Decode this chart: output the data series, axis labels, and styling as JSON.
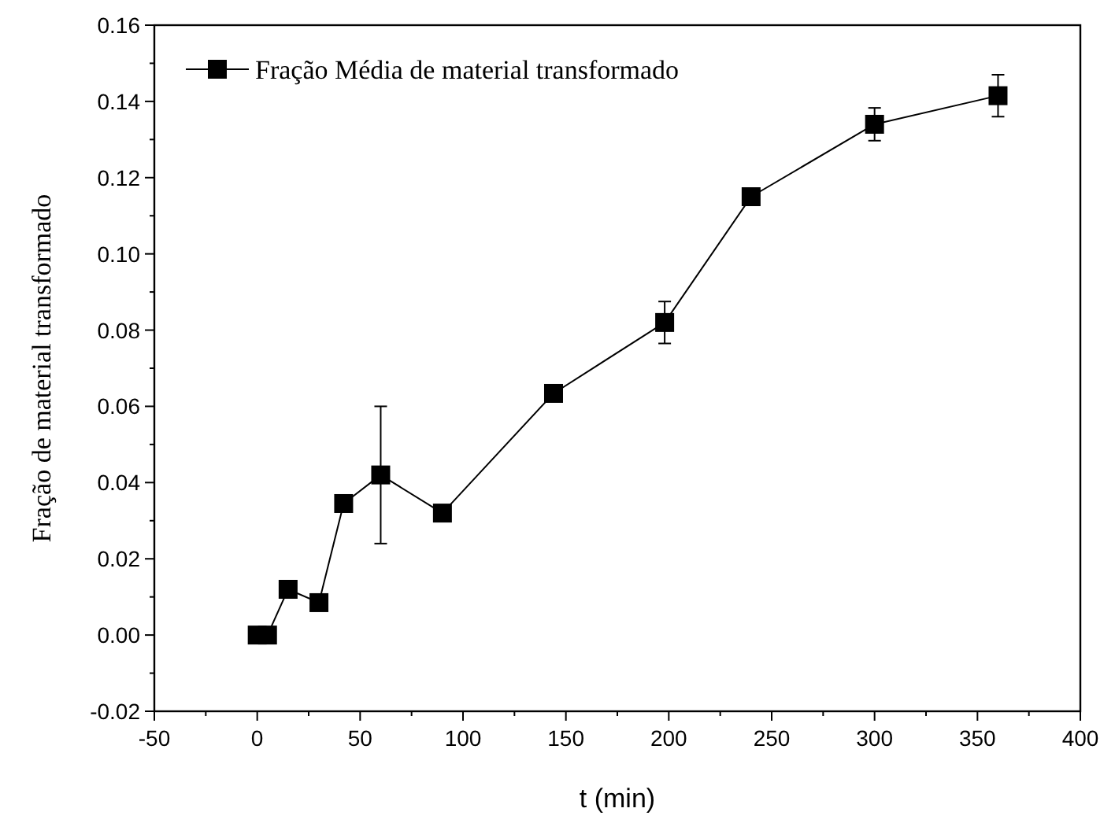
{
  "chart_data": {
    "type": "line",
    "xlabel": "t (min)",
    "ylabel": "Fração de material transformado",
    "x": [
      0,
      5,
      15,
      30,
      42,
      60,
      90,
      144,
      198,
      240,
      300,
      360
    ],
    "series": [
      {
        "name": "Fração Média de material transformado",
        "color": "#000000",
        "values": [
          0,
          0,
          0.012,
          0.0085,
          0.0345,
          0.042,
          0.032,
          0.0634,
          0.082,
          0.115,
          0.134,
          0.1415
        ],
        "errors": [
          null,
          null,
          null,
          null,
          null,
          0.018,
          null,
          null,
          0.0055,
          null,
          0.0043,
          0.0055
        ]
      }
    ],
    "xlim": [
      -50,
      400
    ],
    "xticks": [
      -50,
      {
        "value": -25,
        "label": null
      },
      0,
      {
        "value": 25,
        "label": null
      },
      50,
      {
        "value": 75,
        "label": null
      },
      100,
      {
        "value": 125,
        "label": null
      },
      150,
      {
        "value": 175,
        "label": null
      },
      200,
      {
        "value": 225,
        "label": null
      },
      250,
      {
        "value": 275,
        "label": null
      },
      300,
      {
        "value": 325,
        "label": null
      },
      350,
      {
        "value": 375,
        "label": null
      },
      400
    ],
    "ylim": [
      -0.02,
      0.16
    ],
    "yticks": [
      {
        "value": -0.02,
        "label": "-0.02"
      },
      {
        "value": -0.01,
        "label": null
      },
      {
        "value": 0,
        "label": "0.00"
      },
      {
        "value": 0.01,
        "label": null
      },
      {
        "value": 0.02,
        "label": "0.02"
      },
      {
        "value": 0.03,
        "label": null
      },
      {
        "value": 0.04,
        "label": "0.04"
      },
      {
        "value": 0.05,
        "label": null
      },
      {
        "value": 0.06,
        "label": "0.06"
      },
      {
        "value": 0.07,
        "label": null
      },
      {
        "value": 0.08,
        "label": "0.08"
      },
      {
        "value": 0.09,
        "label": null
      },
      {
        "value": 0.1,
        "label": "0.10"
      },
      {
        "value": 0.11,
        "label": null
      },
      {
        "value": 0.12,
        "label": "0.12"
      },
      {
        "value": 0.13,
        "label": null
      },
      {
        "value": 0.14,
        "label": "0.14"
      },
      {
        "value": 0.15,
        "label": null
      },
      {
        "value": 0.16,
        "label": "0.16"
      }
    ],
    "grid": false,
    "legend": "top left",
    "marker": "square",
    "line_style": "solid"
  }
}
